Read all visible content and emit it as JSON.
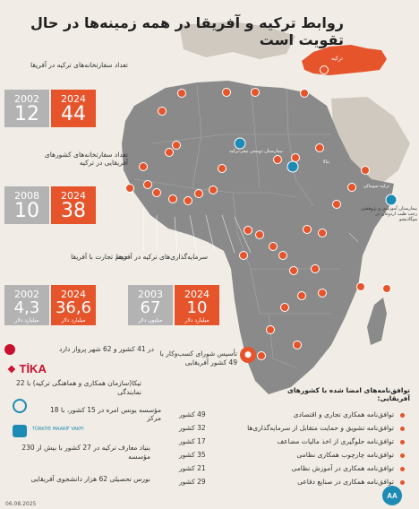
{
  "title": "روابط ترکیه و آفریقا در همه زمینه‌ها در حال تقویت است",
  "turkey_label": "ترکیه",
  "stats": {
    "embassies": {
      "label": "تعداد سفارتخانه‌های ترکیه در آفریقا",
      "y1": "2002",
      "v1": "12",
      "y2": "2024",
      "v2": "44"
    },
    "african_embassies": {
      "label_1": "تعداد سفارتخانه‌های کشورهای",
      "label_2": "آفریقایی در ترکیه",
      "y1": "2008",
      "v1": "10",
      "y2": "2024",
      "v2": "38"
    },
    "trade": {
      "label": "حجم تجارت با آفریقا",
      "y1": "2002",
      "v1": "4,3",
      "y2": "2024",
      "v2": "36,6",
      "unit": "میلیارد دلار"
    },
    "investment": {
      "label": "سرمایه‌گذاری‌های ترکیه در آفریقا",
      "y1": "2003",
      "v1": "67",
      "y2": "2024",
      "v2": "10",
      "unit1": "میلیون دلار",
      "unit2": "میلیارد دلار"
    }
  },
  "map_labels": {
    "hospital_1": "بیمارستان دوستی نیجر-ترکیه",
    "hospital_2": "بیمارستان آموزشی و پژوهشی رجب طیب اردوغان در موگادیشو",
    "africa_pin_1": "ترکیه‌-سومالی",
    "africa_pin_2": "نیالا"
  },
  "left_info": {
    "airline": "در 41 کشور و 62 شهر پرواز دارد",
    "tika_logo": "TİKA",
    "tika": "تیکا(سازمان همکاری و هماهنگی ترکیه) با 22 نمایندگی",
    "diyanet": "مؤسسه یونس امره در 15 کشور، با 18 مرکز",
    "maarif_logo": "TÜRKİYE MAARİF VAKFI",
    "maarif": "بنیاد معارف ترکیه در 27 کشور با بیش از 230 مؤسسه",
    "scholarship": "بورس تحصیلی 62 هزار دانشجوی آفریقایی"
  },
  "business_council": "تأسیس شورای کسب‌وکار با 49 کشور آفریقایی",
  "agreements": {
    "heading": "توافق‌نامه‌های امضا شده با کشورهای آفریقایی:",
    "items": [
      {
        "label": "توافق‌نامه همکاری تجاری و اقتصادی",
        "count": "49 کشور"
      },
      {
        "label": "توافق‌نامه تشویق و حمایت متقابل از سرمایه‌گذاری‌ها",
        "count": "32 کشور"
      },
      {
        "label": "توافق‌نامه جلوگیری از اخذ مالیات مضاعف",
        "count": "17 کشور"
      },
      {
        "label": "توافق‌نامه چارچوب همکاری نظامی",
        "count": "35 کشور"
      },
      {
        "label": "توافق‌نامه همکاری در آموزش نظامی",
        "count": "21 کشور"
      },
      {
        "label": "توافق‌نامه همکاری در صنایع دفاعی",
        "count": "29 کشور"
      }
    ]
  },
  "footer": {
    "date": "06.08.2025",
    "logo": "AA"
  },
  "colors": {
    "accent": "#e6542b",
    "gray": "#b3b3b3",
    "map": "#8a8a8a",
    "background": "#f1ede6",
    "teal": "#1e8bb5"
  }
}
